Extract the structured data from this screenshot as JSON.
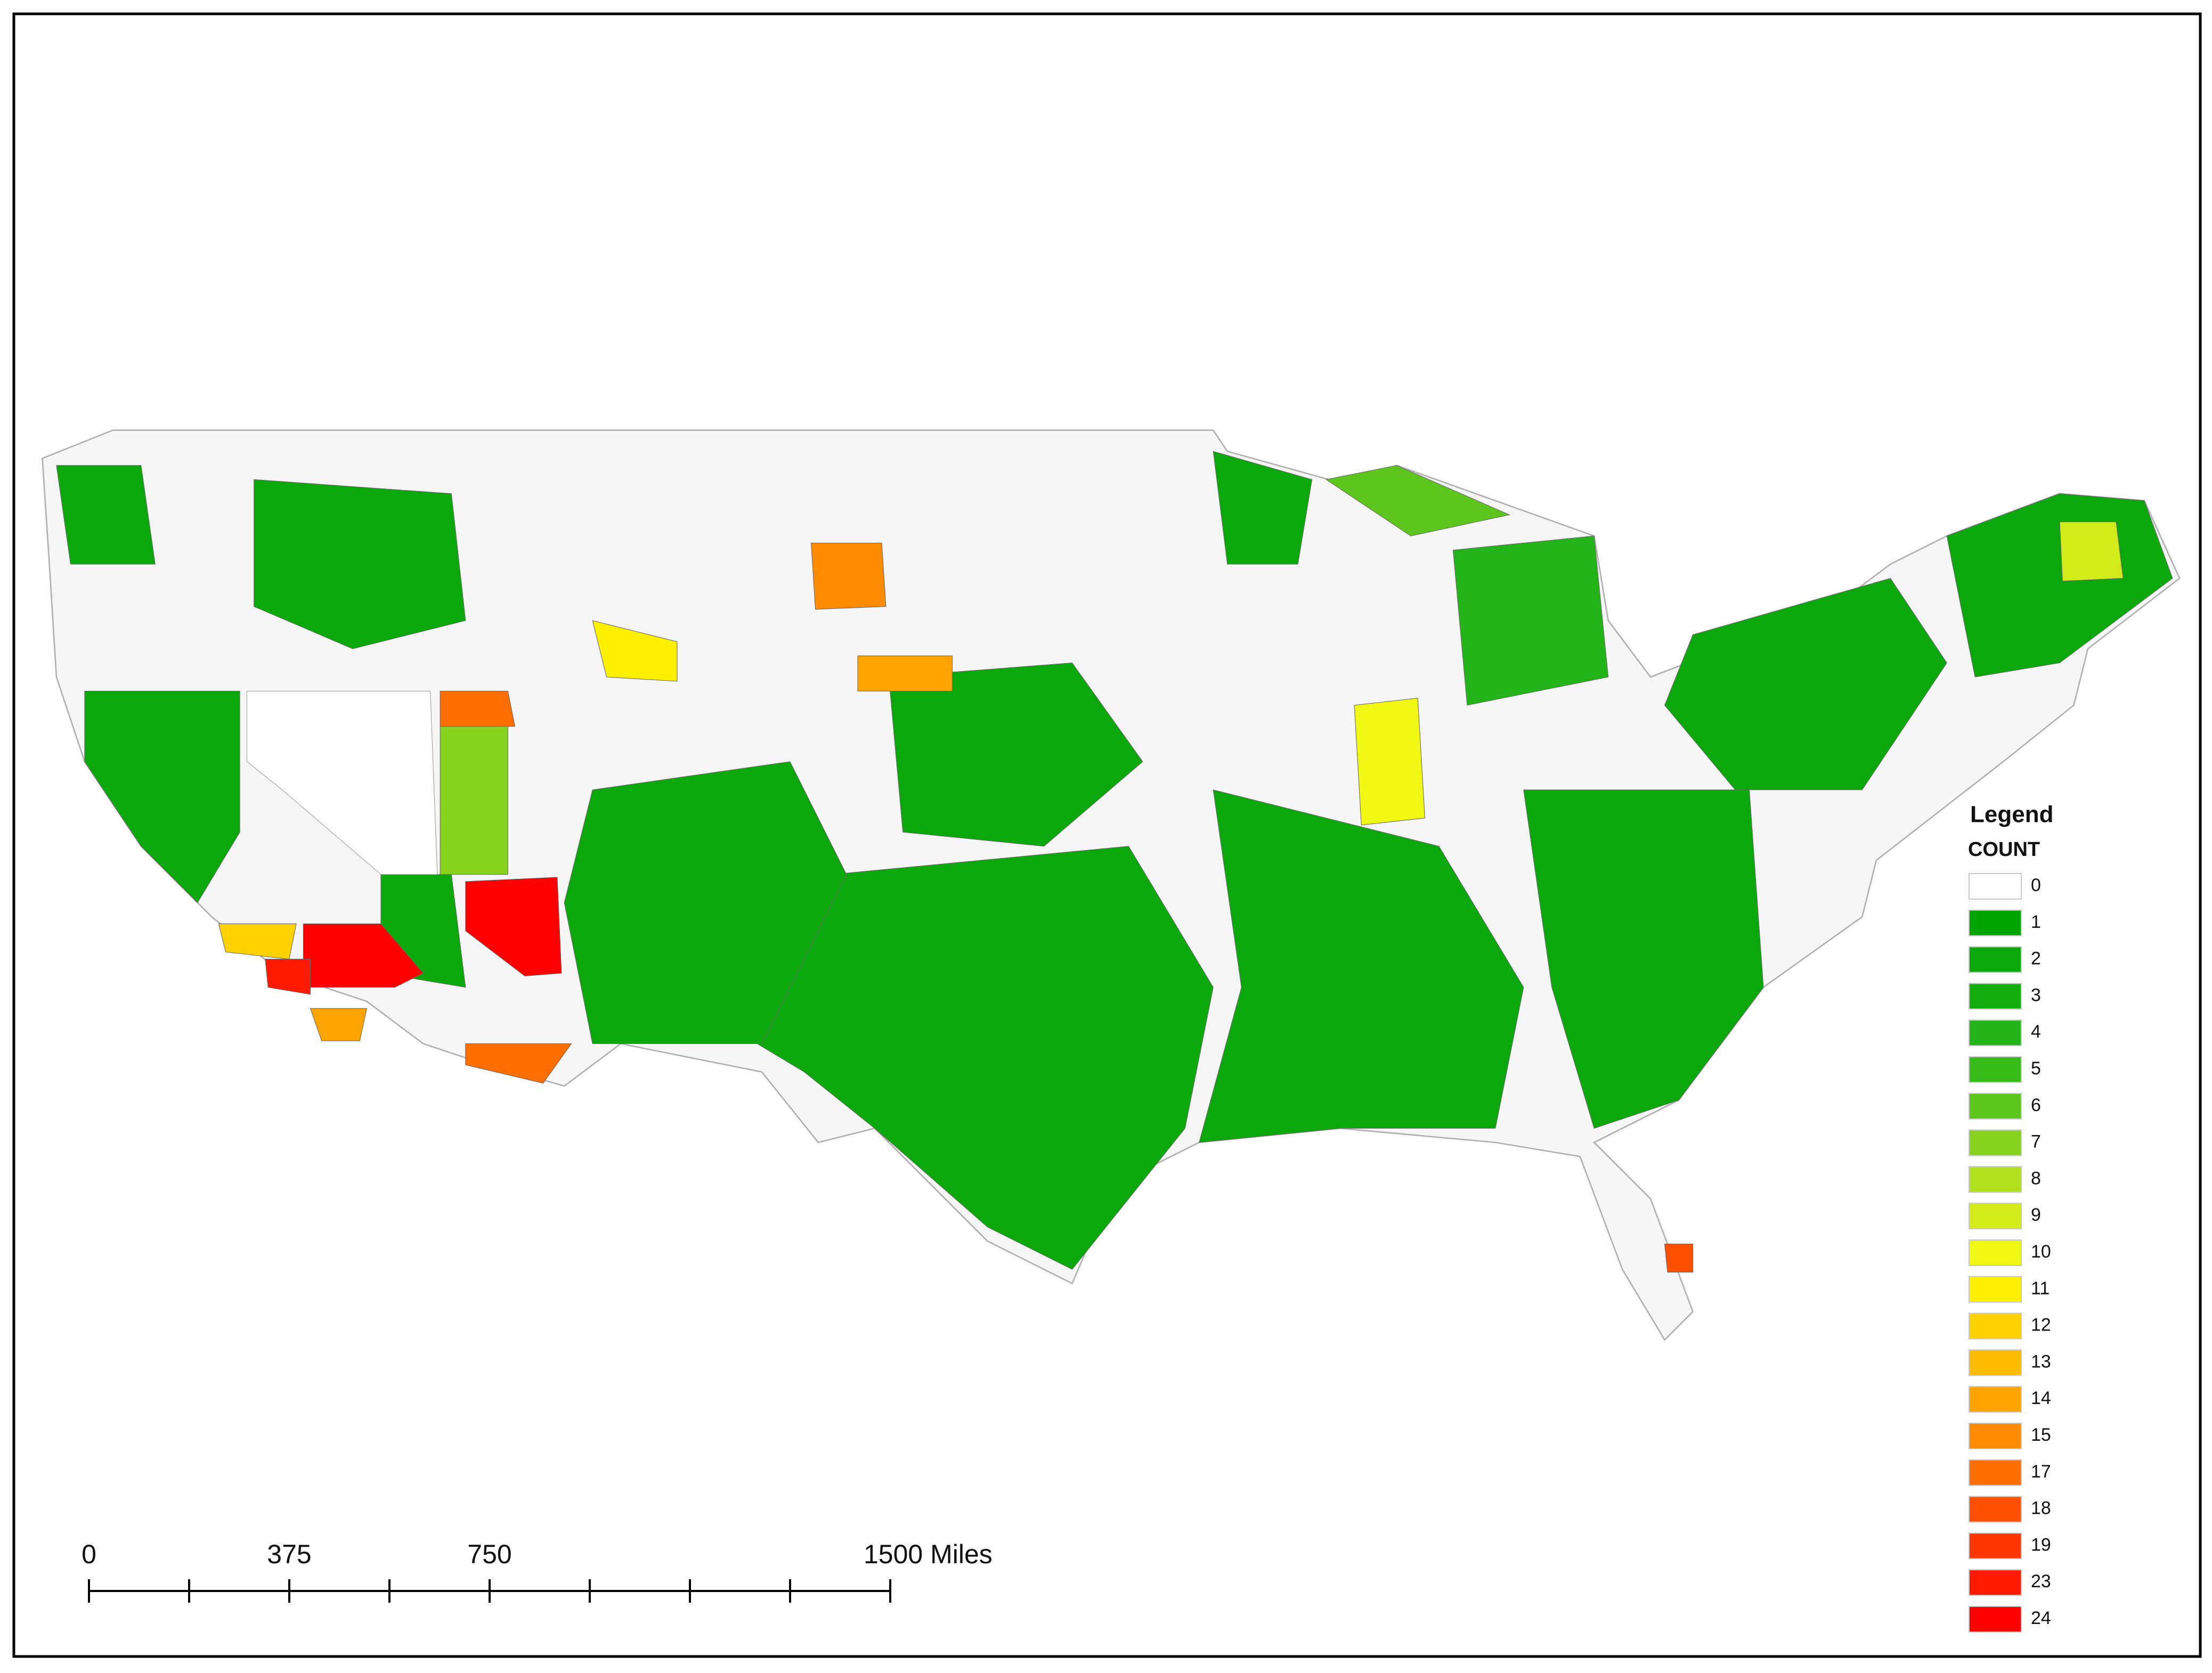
{
  "legend": {
    "title": "Legend",
    "subtitle": "COUNT",
    "items": [
      {
        "label": "0",
        "color": "#ffffff"
      },
      {
        "label": "1",
        "color": "#00a400"
      },
      {
        "label": "2",
        "color": "#0aa80a"
      },
      {
        "label": "3",
        "color": "#14ad0e"
      },
      {
        "label": "4",
        "color": "#22b418"
      },
      {
        "label": "5",
        "color": "#38bc1a"
      },
      {
        "label": "6",
        "color": "#5cc61c"
      },
      {
        "label": "7",
        "color": "#86d21e"
      },
      {
        "label": "8",
        "color": "#b0e01e"
      },
      {
        "label": "9",
        "color": "#d2ec1a"
      },
      {
        "label": "10",
        "color": "#f0f814"
      },
      {
        "label": "11",
        "color": "#fff000"
      },
      {
        "label": "12",
        "color": "#ffd200"
      },
      {
        "label": "13",
        "color": "#ffbc00"
      },
      {
        "label": "14",
        "color": "#ffa400"
      },
      {
        "label": "15",
        "color": "#ff8c00"
      },
      {
        "label": "17",
        "color": "#ff6e00"
      },
      {
        "label": "18",
        "color": "#ff5000"
      },
      {
        "label": "19",
        "color": "#ff3600"
      },
      {
        "label": "23",
        "color": "#ff1a00"
      },
      {
        "label": "24",
        "color": "#ff0000"
      }
    ]
  },
  "scale_bar": {
    "ticks": [
      {
        "value": 0,
        "label": "0"
      },
      {
        "value": 375,
        "label": "375"
      },
      {
        "value": 750,
        "label": "750"
      },
      {
        "value": 1500,
        "label": "1500 Miles"
      }
    ]
  }
}
